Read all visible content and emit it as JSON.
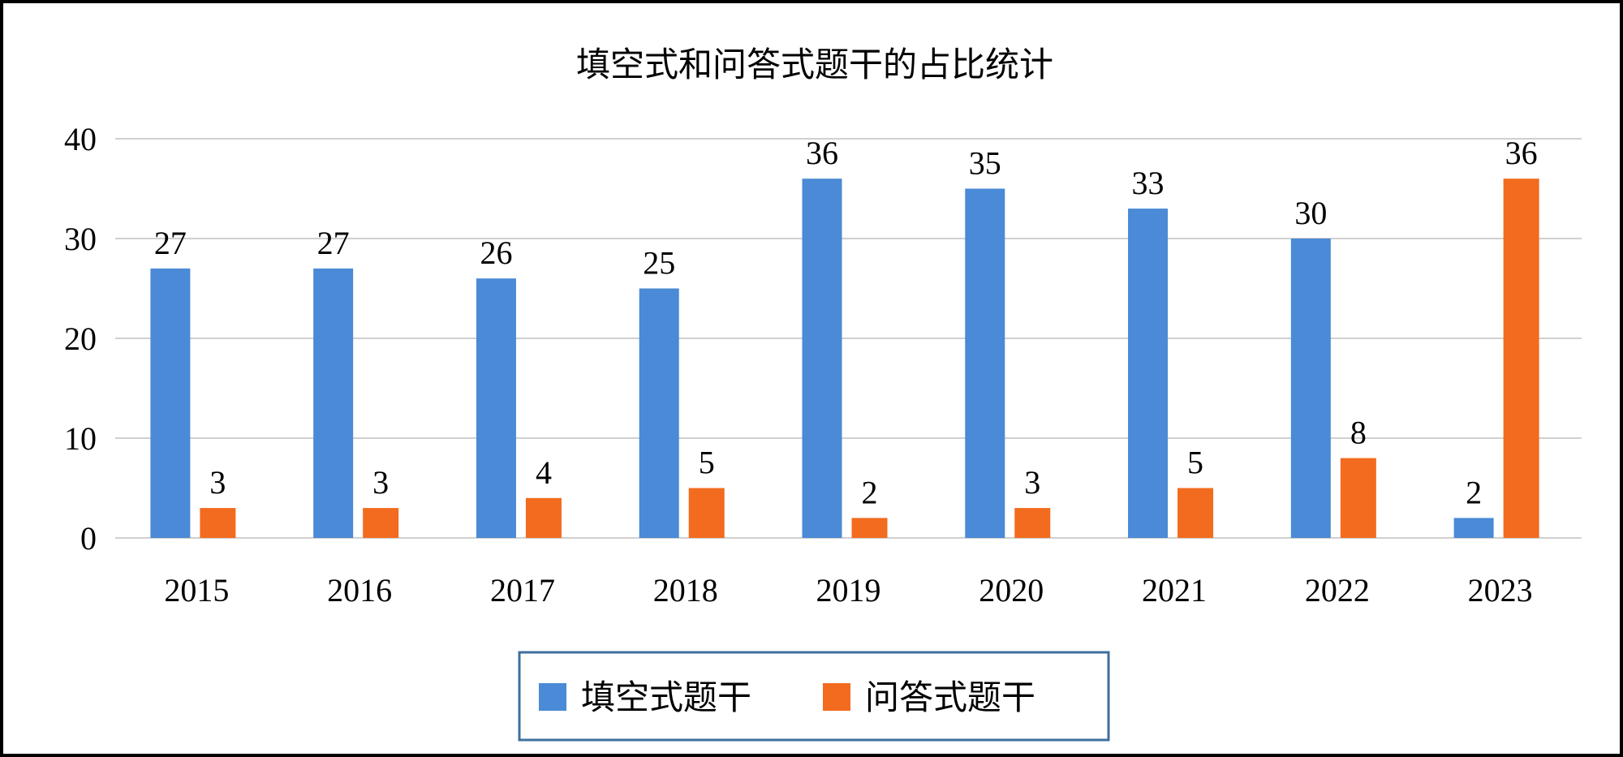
{
  "chart_data": {
    "type": "bar",
    "title": "填空式和问答式题干的占比统计",
    "categories": [
      "2015",
      "2016",
      "2017",
      "2018",
      "2019",
      "2020",
      "2021",
      "2022",
      "2023"
    ],
    "series": [
      {
        "name": "填空式题干",
        "color": "#4a8ad6",
        "values": [
          27,
          27,
          26,
          25,
          36,
          35,
          33,
          30,
          2
        ]
      },
      {
        "name": "问答式题干",
        "color": "#f26b1f",
        "values": [
          3,
          3,
          4,
          5,
          2,
          3,
          5,
          8,
          36
        ]
      }
    ],
    "ylim": [
      0,
      40
    ],
    "yticks": [
      0,
      10,
      20,
      30,
      40
    ],
    "grid": true,
    "data_labels": true,
    "legend": "bottom",
    "xlabel": "",
    "ylabel": ""
  }
}
